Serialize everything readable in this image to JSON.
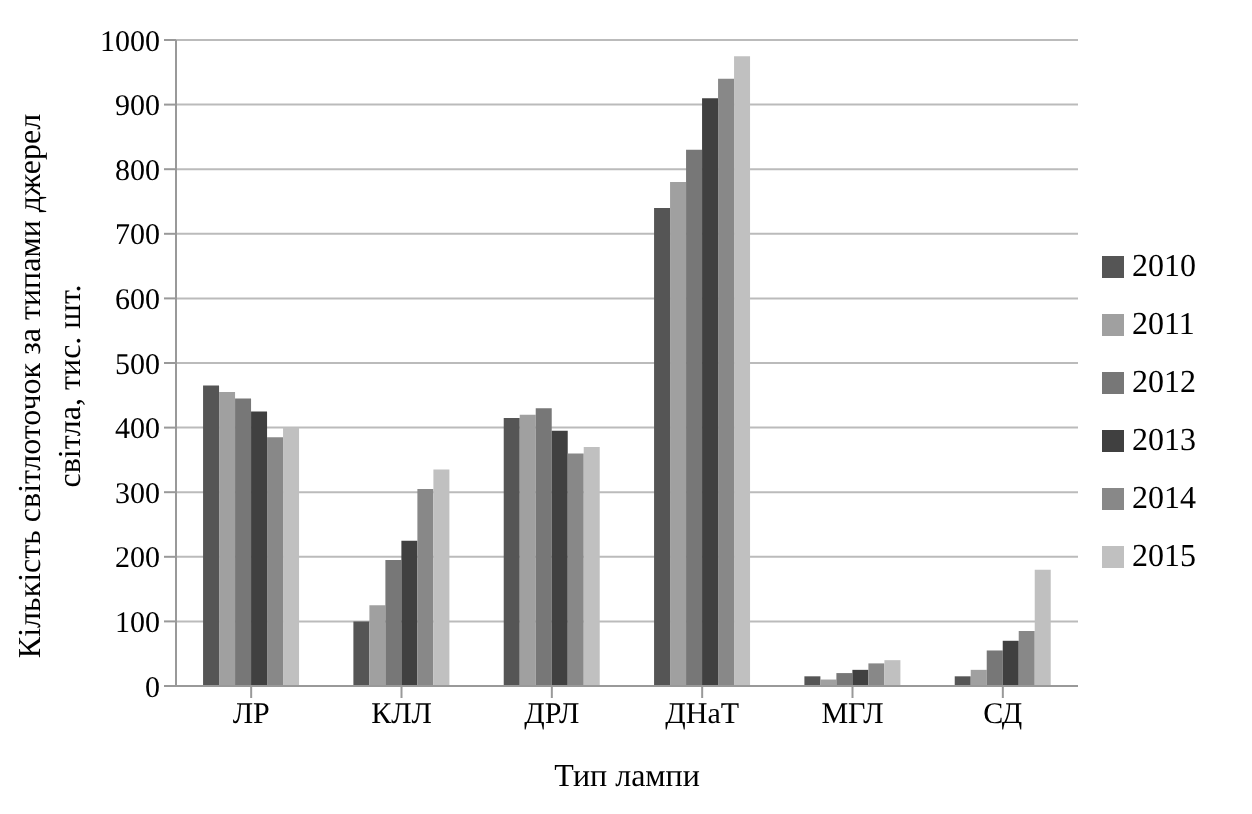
{
  "chart_data": {
    "type": "bar",
    "xlabel": "Тип лампи",
    "ylabel": "Кількість світлоточок за типами джерел світла, тис. шт.",
    "categories": [
      "ЛР",
      "КЛЛ",
      "ДРЛ",
      "ДНаТ",
      "МГЛ",
      "СД"
    ],
    "series": [
      {
        "name": "2010",
        "color": "#555555",
        "values": [
          465,
          100,
          415,
          740,
          15,
          15
        ]
      },
      {
        "name": "2011",
        "color": "#a0a0a0",
        "values": [
          455,
          125,
          420,
          780,
          10,
          25
        ]
      },
      {
        "name": "2012",
        "color": "#777777",
        "values": [
          445,
          195,
          430,
          830,
          20,
          55
        ]
      },
      {
        "name": "2013",
        "color": "#404040",
        "values": [
          425,
          225,
          395,
          910,
          25,
          70
        ]
      },
      {
        "name": "2014",
        "color": "#888888",
        "values": [
          385,
          305,
          360,
          940,
          35,
          85
        ]
      },
      {
        "name": "2015",
        "color": "#c0c0c0",
        "values": [
          400,
          335,
          370,
          975,
          40,
          180
        ]
      }
    ],
    "ylim": [
      0,
      1000
    ],
    "yticks": [
      0,
      100,
      200,
      300,
      400,
      500,
      600,
      700,
      800,
      900,
      1000
    ],
    "grid": "y",
    "legend": "right"
  }
}
